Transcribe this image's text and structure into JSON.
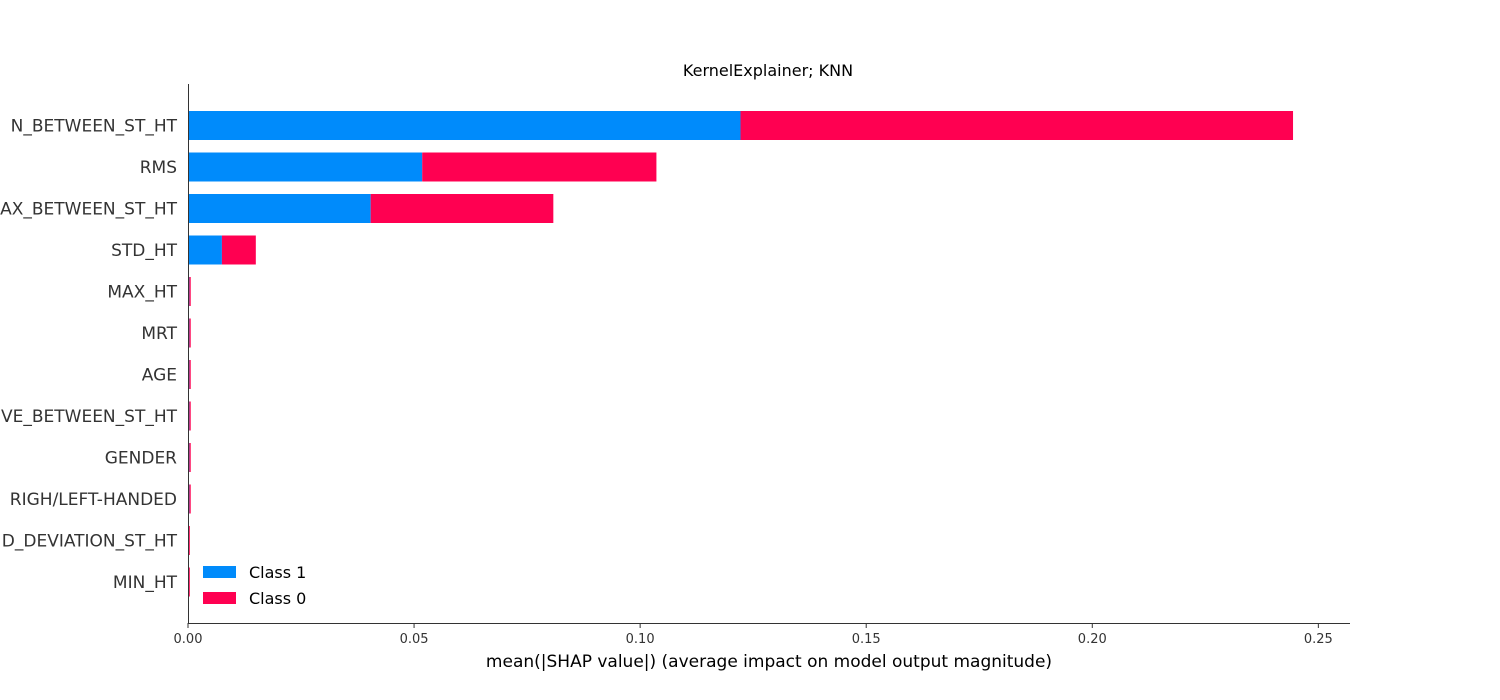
{
  "chart_data": {
    "type": "bar",
    "orientation": "horizontal",
    "stacked": true,
    "title": "KernelExplainer; KNN",
    "xlabel": "mean(|SHAP value|) (average impact on model output magnitude)",
    "ylabel": "",
    "xlim": [
      0,
      0.257
    ],
    "xticks": [
      0.0,
      0.05,
      0.1,
      0.15,
      0.2,
      0.25
    ],
    "xtick_labels": [
      "0.00",
      "0.05",
      "0.10",
      "0.15",
      "0.20",
      "0.25"
    ],
    "categories": [
      "N_BETWEEN_ST_HT",
      "RMS",
      "AX_BETWEEN_ST_HT",
      "STD_HT",
      "MAX_HT",
      "MRT",
      "AGE",
      "VE_BETWEEN_ST_HT",
      "GENDER",
      "RIGH/LEFT-HANDED",
      "D_DEVIATION_ST_HT",
      "MIN_HT"
    ],
    "series": [
      {
        "name": "Class 1",
        "color": "#008bfb",
        "values": [
          0.1222,
          0.0518,
          0.0404,
          0.0075,
          0.0003,
          0.0003,
          0.0003,
          0.0003,
          0.0003,
          0.0003,
          0.0002,
          0.0002
        ]
      },
      {
        "name": "Class 0",
        "color": "#ff0051",
        "values": [
          0.1222,
          0.0518,
          0.0404,
          0.0075,
          0.0003,
          0.0003,
          0.0003,
          0.0003,
          0.0003,
          0.0003,
          0.0002,
          0.0002
        ]
      }
    ],
    "legend": {
      "position": "bottom-left"
    },
    "grid": false
  }
}
